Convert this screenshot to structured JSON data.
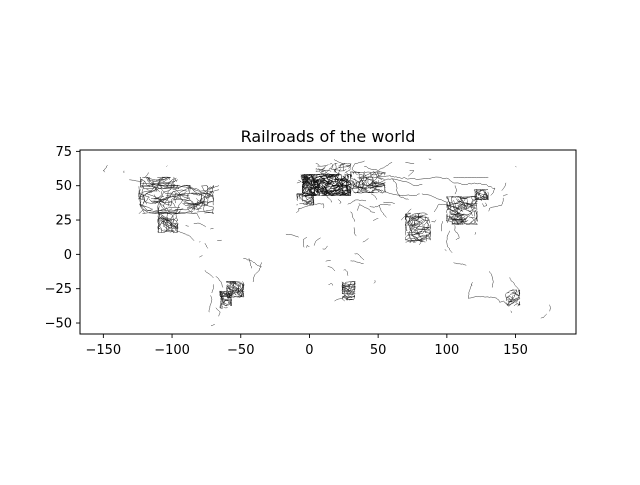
{
  "chart_data": {
    "type": "map",
    "title": "Railroads of the world",
    "xlabel": "",
    "ylabel": "",
    "xlim": [
      -167,
      194
    ],
    "ylim": [
      -58,
      76
    ],
    "xticks": [
      -150,
      -100,
      -50,
      0,
      50,
      100,
      150
    ],
    "yticks": [
      75,
      50,
      25,
      0,
      -25,
      -50
    ],
    "xtick_labels": [
      "−150",
      "−100",
      "−50",
      "0",
      "50",
      "100",
      "150"
    ],
    "ytick_labels": [
      "75",
      "50",
      "25",
      "0",
      "−25",
      "−50"
    ],
    "grid": false,
    "legend": "none",
    "line_color": "#000000",
    "features": "railroad lines (longitude/latitude)"
  }
}
